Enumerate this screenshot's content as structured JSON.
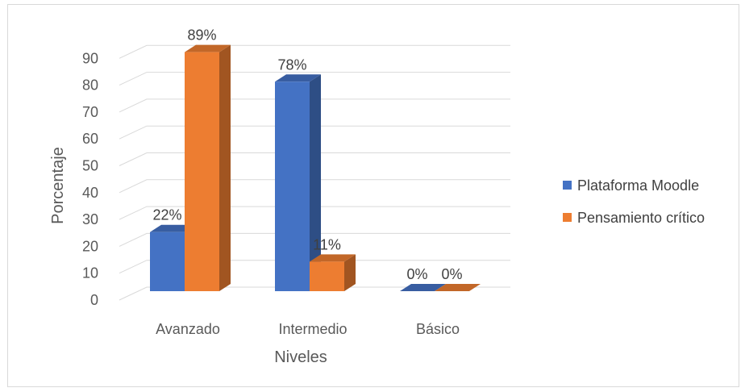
{
  "chart_data": {
    "type": "bar",
    "style": "3d-clustered-column",
    "categories": [
      "Avanzado",
      "Intermedio",
      "Básico"
    ],
    "series": [
      {
        "name": "Plataforma Moodle",
        "values": [
          22,
          78,
          0
        ],
        "labels": [
          "22%",
          "78%",
          "0%"
        ],
        "color": "#4472c4"
      },
      {
        "name": "Pensamiento crítico",
        "values": [
          89,
          11,
          0
        ],
        "labels": [
          "89%",
          "11%",
          "0%"
        ],
        "color": "#ed7d31"
      }
    ],
    "xlabel": "Niveles",
    "ylabel": "Porcentaje",
    "ylim": [
      0,
      90
    ],
    "yticks": [
      0,
      10,
      20,
      30,
      40,
      50,
      60,
      70,
      80,
      90
    ],
    "grid": true,
    "legend": "right"
  }
}
